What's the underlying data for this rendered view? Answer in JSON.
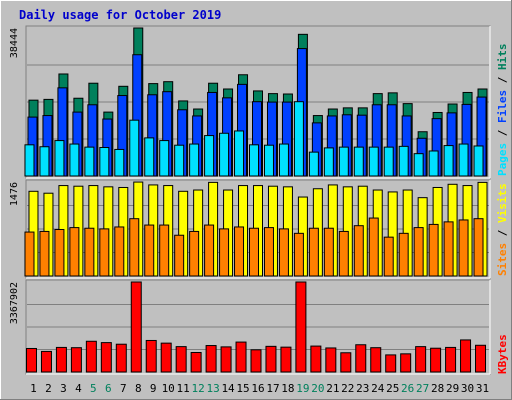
{
  "title": "Daily usage for October 2019",
  "colors": {
    "background": "#c0c0c0",
    "title": "#0000cc",
    "hits": "#00805c",
    "files": "#0040ff",
    "pages": "#00e0ff",
    "visits": "#ffff00",
    "sites": "#ff8000",
    "kbytes": "#ff0000",
    "weekend_label": "#00805c",
    "weekday_label": "#000000"
  },
  "labels": {
    "pages": "Pages",
    "files": "Files",
    "hits": "Hits",
    "sites": "Sites",
    "visits": "Visits",
    "kbytes": "KBytes",
    "separator": " / "
  },
  "chart_data": {
    "type": "bar",
    "days": [
      "1",
      "2",
      "3",
      "4",
      "5",
      "6",
      "7",
      "8",
      "9",
      "10",
      "11",
      "12",
      "13",
      "14",
      "15",
      "16",
      "17",
      "18",
      "19",
      "20",
      "21",
      "22",
      "23",
      "24",
      "25",
      "26",
      "27",
      "28",
      "29",
      "30",
      "31"
    ],
    "weekend_days": [
      "5",
      "6",
      "12",
      "13",
      "19",
      "20",
      "26",
      "27"
    ],
    "panels": [
      {
        "name": "hits-files-pages",
        "ymax_label": "38444",
        "ymax": 38444,
        "series": [
          {
            "name": "Hits",
            "values": [
              19700,
              19900,
              26500,
              20200,
              24100,
              16600,
              23300,
              38444,
              24000,
              24500,
              19500,
              17400,
              24100,
              22600,
              26300,
              22100,
              21400,
              21300,
              36800,
              15700,
              17400,
              17700,
              17700,
              21400,
              21600,
              18800,
              11500,
              16500,
              18700,
              21700,
              22600
            ]
          },
          {
            "name": "Files",
            "values": [
              15300,
              15700,
              22900,
              16600,
              18500,
              14800,
              20900,
              31500,
              21100,
              21900,
              17200,
              15600,
              21700,
              20300,
              23800,
              19300,
              19200,
              19200,
              33100,
              13800,
              15600,
              15900,
              15800,
              18500,
              18500,
              15600,
              9800,
              14900,
              16400,
              18600,
              20500
            ]
          },
          {
            "name": "Pages",
            "values": [
              8100,
              7600,
              9200,
              8300,
              7500,
              7400,
              6900,
              14500,
              9900,
              9200,
              8000,
              8300,
              10500,
              11100,
              11700,
              8100,
              8000,
              8300,
              19300,
              6200,
              7300,
              7500,
              7500,
              7500,
              7500,
              7700,
              5800,
              6500,
              7900,
              8300,
              7800
            ]
          }
        ]
      },
      {
        "name": "visits-sites",
        "ymax_label": "1476",
        "ymax": 1476,
        "series": [
          {
            "name": "Visits",
            "values": [
              1330,
              1300,
              1420,
              1410,
              1420,
              1400,
              1390,
              1475,
              1430,
              1420,
              1330,
              1350,
              1470,
              1350,
              1420,
              1420,
              1410,
              1400,
              1240,
              1370,
              1430,
              1400,
              1410,
              1350,
              1320,
              1350,
              1230,
              1390,
              1440,
              1420,
              1470
            ]
          },
          {
            "name": "Sites",
            "values": [
              690,
              700,
              730,
              760,
              750,
              740,
              770,
              900,
              800,
              800,
              640,
              700,
              800,
              740,
              770,
              750,
              760,
              740,
              670,
              750,
              750,
              700,
              790,
              910,
              610,
              670,
              760,
              810,
              850,
              880,
              900
            ]
          }
        ]
      },
      {
        "name": "kbytes",
        "ymax_label": "3367902",
        "ymax": 3367902,
        "series": [
          {
            "name": "KBytes",
            "values": [
              880000,
              770000,
              920000,
              910000,
              1150000,
              1100000,
              1040000,
              3367902,
              1180000,
              1080000,
              950000,
              730000,
              990000,
              940000,
              1120000,
              830000,
              960000,
              930000,
              3367902,
              970000,
              900000,
              720000,
              1020000,
              910000,
              640000,
              680000,
              950000,
              890000,
              920000,
              1200000,
              1000000
            ]
          }
        ]
      }
    ]
  }
}
